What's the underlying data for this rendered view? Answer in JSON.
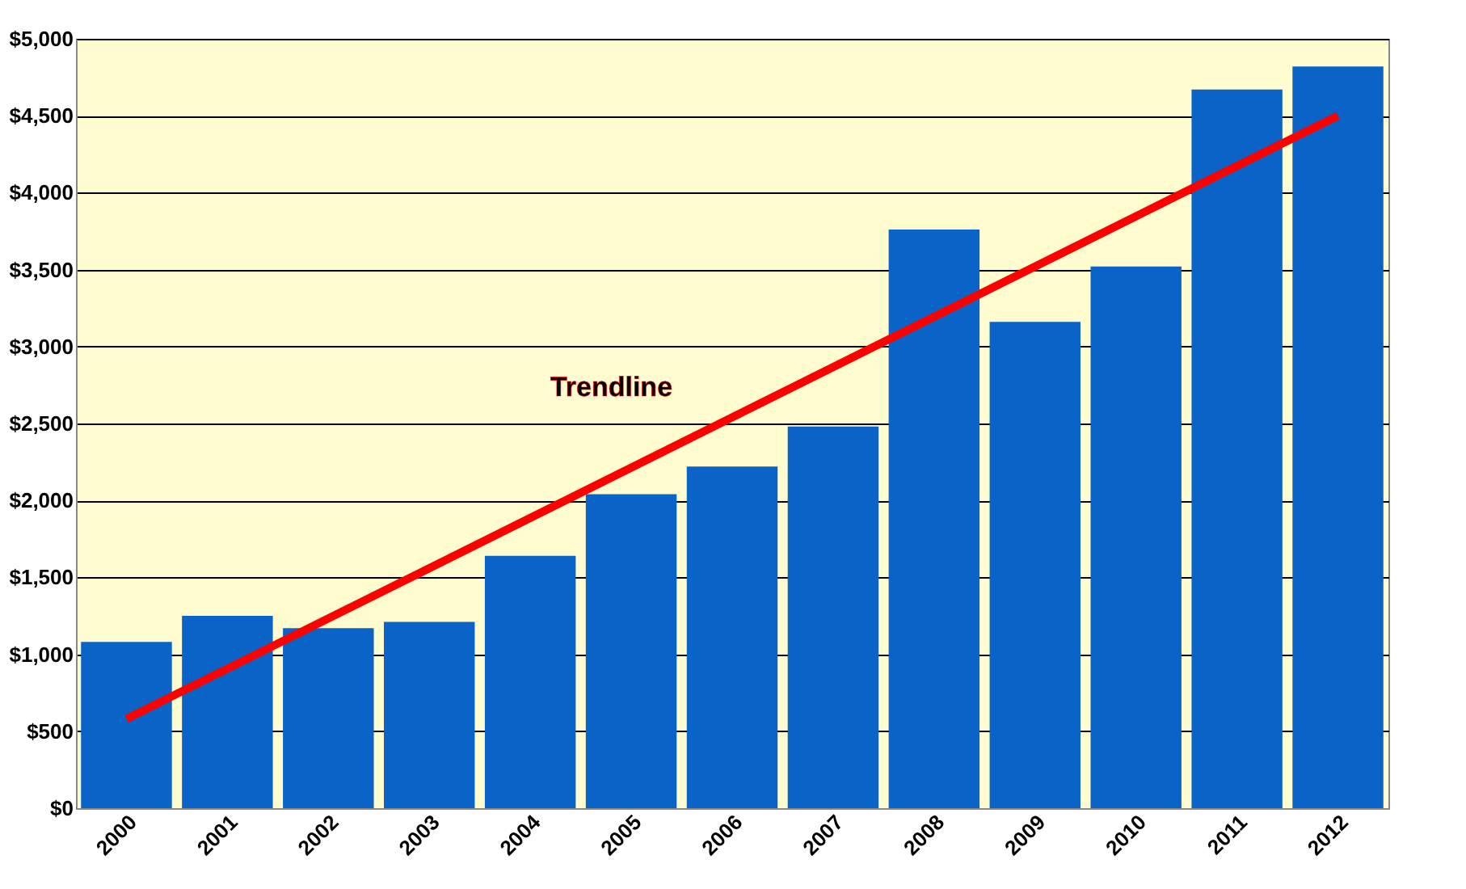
{
  "chart_data": {
    "type": "bar",
    "categories": [
      "2000",
      "2001",
      "2002",
      "2003",
      "2004",
      "2005",
      "2006",
      "2007",
      "2008",
      "2009",
      "2010",
      "2011",
      "2012"
    ],
    "series": [
      {
        "color": "#0a64c8",
        "values": [
          1080,
          1250,
          1170,
          1210,
          1640,
          2040,
          2220,
          2480,
          3760,
          3160,
          3520,
          4670,
          4820
        ]
      },
      {
        "type": "line",
        "name": "Trendline",
        "color": "#ff0000",
        "values": [
          580,
          null,
          null,
          null,
          null,
          null,
          null,
          null,
          null,
          null,
          null,
          null,
          4500
        ]
      }
    ],
    "ylim": [
      0,
      5000
    ],
    "yticks": [
      {
        "value": 0,
        "label": "$0"
      },
      {
        "value": 500,
        "label": "$500"
      },
      {
        "value": 1000,
        "label": "$1,000"
      },
      {
        "value": 1500,
        "label": "$1,500"
      },
      {
        "value": 2000,
        "label": "$2,000"
      },
      {
        "value": 2500,
        "label": "$2,500"
      },
      {
        "value": 3000,
        "label": "$3,000"
      },
      {
        "value": 3500,
        "label": "$3,500"
      },
      {
        "value": 4000,
        "label": "$4,000"
      },
      {
        "value": 4500,
        "label": "$4,500"
      },
      {
        "value": 5000,
        "label": "$5,000"
      }
    ],
    "grid": "y"
  }
}
